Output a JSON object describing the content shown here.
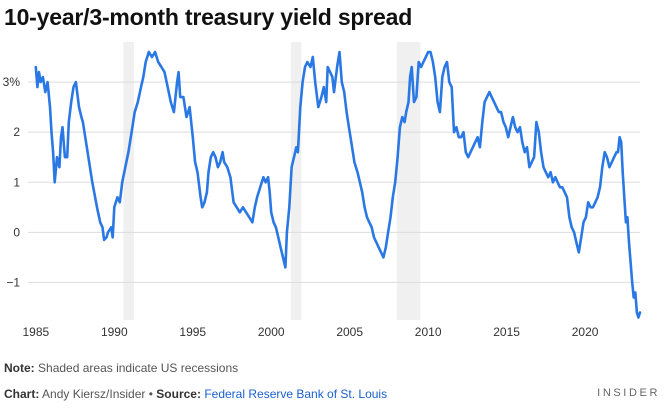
{
  "title": "10-year/3-month treasury yield spread",
  "note": {
    "label": "Note:",
    "text": "Shaded areas indicate US recessions"
  },
  "credit": {
    "chart_label": "Chart:",
    "chart_author": "Andy Kiersz/Insider",
    "separator": "•",
    "source_label": "Source:",
    "source_name": "Federal Reserve Bank of St. Louis"
  },
  "brand": "INSIDER",
  "colors": {
    "line": "#2a78e4",
    "recession": "#f0f0f0",
    "grid": "#dddddd",
    "axis_text": "#333333"
  },
  "chart_data": {
    "type": "line",
    "title": "10-year/3-month treasury yield spread",
    "ylabel": "",
    "xlabel": "",
    "xlim": [
      1984.5,
      2023.5
    ],
    "ylim": [
      -1.75,
      3.8
    ],
    "x_ticks": [
      1985,
      1990,
      1995,
      2000,
      2005,
      2010,
      2015,
      2020
    ],
    "x_tick_labels": [
      "1985",
      "1990",
      "1995",
      "2000",
      "2005",
      "2010",
      "2015",
      "2020"
    ],
    "y_ticks": [
      3,
      2,
      1,
      0,
      -1
    ],
    "y_tick_labels": [
      "3%",
      "2",
      "1",
      "0",
      "−1"
    ],
    "recessions": [
      [
        1990.58,
        1991.25
      ],
      [
        2001.25,
        2001.92
      ],
      [
        2008.0,
        2009.5
      ]
    ],
    "series": [
      {
        "name": "10-year minus 3-month spread",
        "points": [
          [
            1985.0,
            3.3
          ],
          [
            1985.1,
            2.9
          ],
          [
            1985.2,
            3.2
          ],
          [
            1985.3,
            3.0
          ],
          [
            1985.45,
            3.1
          ],
          [
            1985.6,
            2.8
          ],
          [
            1985.75,
            3.0
          ],
          [
            1985.9,
            2.5
          ],
          [
            1986.0,
            2.0
          ],
          [
            1986.1,
            1.6
          ],
          [
            1986.2,
            1.0
          ],
          [
            1986.35,
            1.5
          ],
          [
            1986.5,
            1.3
          ],
          [
            1986.6,
            1.9
          ],
          [
            1986.7,
            2.1
          ],
          [
            1986.85,
            1.5
          ],
          [
            1987.0,
            1.5
          ],
          [
            1987.1,
            2.2
          ],
          [
            1987.25,
            2.6
          ],
          [
            1987.4,
            2.9
          ],
          [
            1987.55,
            3.0
          ],
          [
            1987.75,
            2.5
          ],
          [
            1987.9,
            2.3
          ],
          [
            1988.0,
            2.2
          ],
          [
            1988.3,
            1.6
          ],
          [
            1988.6,
            1.0
          ],
          [
            1988.9,
            0.5
          ],
          [
            1989.1,
            0.2
          ],
          [
            1989.25,
            0.1
          ],
          [
            1989.35,
            -0.15
          ],
          [
            1989.5,
            -0.1
          ],
          [
            1989.6,
            0.0
          ],
          [
            1989.8,
            0.1
          ],
          [
            1989.9,
            -0.1
          ],
          [
            1990.0,
            0.5
          ],
          [
            1990.2,
            0.7
          ],
          [
            1990.35,
            0.6
          ],
          [
            1990.5,
            1.0
          ],
          [
            1990.7,
            1.3
          ],
          [
            1990.9,
            1.6
          ],
          [
            1991.1,
            2.0
          ],
          [
            1991.3,
            2.4
          ],
          [
            1991.5,
            2.6
          ],
          [
            1991.7,
            2.9
          ],
          [
            1991.85,
            3.1
          ],
          [
            1992.0,
            3.4
          ],
          [
            1992.2,
            3.6
          ],
          [
            1992.4,
            3.5
          ],
          [
            1992.6,
            3.6
          ],
          [
            1992.8,
            3.4
          ],
          [
            1993.0,
            3.3
          ],
          [
            1993.2,
            3.2
          ],
          [
            1993.4,
            2.9
          ],
          [
            1993.6,
            2.6
          ],
          [
            1993.8,
            2.4
          ],
          [
            1994.0,
            3.0
          ],
          [
            1994.1,
            3.2
          ],
          [
            1994.2,
            2.7
          ],
          [
            1994.4,
            2.7
          ],
          [
            1994.6,
            2.3
          ],
          [
            1994.8,
            2.5
          ],
          [
            1995.0,
            1.9
          ],
          [
            1995.15,
            1.4
          ],
          [
            1995.3,
            1.2
          ],
          [
            1995.5,
            0.7
          ],
          [
            1995.6,
            0.5
          ],
          [
            1995.75,
            0.6
          ],
          [
            1995.9,
            0.8
          ],
          [
            1996.0,
            1.2
          ],
          [
            1996.15,
            1.5
          ],
          [
            1996.3,
            1.6
          ],
          [
            1996.45,
            1.5
          ],
          [
            1996.6,
            1.3
          ],
          [
            1996.75,
            1.4
          ],
          [
            1996.9,
            1.6
          ],
          [
            1997.0,
            1.4
          ],
          [
            1997.2,
            1.3
          ],
          [
            1997.4,
            1.1
          ],
          [
            1997.6,
            0.6
          ],
          [
            1997.8,
            0.5
          ],
          [
            1998.0,
            0.4
          ],
          [
            1998.2,
            0.5
          ],
          [
            1998.4,
            0.4
          ],
          [
            1998.6,
            0.3
          ],
          [
            1998.8,
            0.2
          ],
          [
            1998.95,
            0.5
          ],
          [
            1999.1,
            0.7
          ],
          [
            1999.3,
            0.9
          ],
          [
            1999.5,
            1.1
          ],
          [
            1999.65,
            1.0
          ],
          [
            1999.8,
            1.1
          ],
          [
            1999.9,
            0.8
          ],
          [
            2000.0,
            0.4
          ],
          [
            2000.15,
            0.2
          ],
          [
            2000.3,
            0.1
          ],
          [
            2000.45,
            -0.1
          ],
          [
            2000.6,
            -0.3
          ],
          [
            2000.75,
            -0.5
          ],
          [
            2000.9,
            -0.7
          ],
          [
            2001.0,
            0.0
          ],
          [
            2001.15,
            0.5
          ],
          [
            2001.3,
            1.3
          ],
          [
            2001.45,
            1.5
          ],
          [
            2001.6,
            1.7
          ],
          [
            2001.7,
            1.6
          ],
          [
            2001.85,
            2.5
          ],
          [
            2002.0,
            3.0
          ],
          [
            2002.15,
            3.3
          ],
          [
            2002.3,
            3.4
          ],
          [
            2002.5,
            3.3
          ],
          [
            2002.65,
            3.5
          ],
          [
            2002.8,
            3.0
          ],
          [
            2003.0,
            2.5
          ],
          [
            2003.2,
            2.7
          ],
          [
            2003.35,
            2.9
          ],
          [
            2003.5,
            2.6
          ],
          [
            2003.6,
            3.3
          ],
          [
            2003.75,
            3.2
          ],
          [
            2003.9,
            3.1
          ],
          [
            2004.0,
            2.8
          ],
          [
            2004.2,
            3.3
          ],
          [
            2004.35,
            3.6
          ],
          [
            2004.5,
            3.0
          ],
          [
            2004.65,
            2.8
          ],
          [
            2004.8,
            2.4
          ],
          [
            2004.95,
            2.1
          ],
          [
            2005.1,
            1.8
          ],
          [
            2005.3,
            1.4
          ],
          [
            2005.5,
            1.2
          ],
          [
            2005.65,
            1.0
          ],
          [
            2005.8,
            0.8
          ],
          [
            2005.95,
            0.5
          ],
          [
            2006.1,
            0.3
          ],
          [
            2006.25,
            0.2
          ],
          [
            2006.4,
            0.1
          ],
          [
            2006.55,
            -0.1
          ],
          [
            2006.7,
            -0.2
          ],
          [
            2006.85,
            -0.3
          ],
          [
            2007.0,
            -0.4
          ],
          [
            2007.15,
            -0.5
          ],
          [
            2007.3,
            -0.3
          ],
          [
            2007.45,
            0.0
          ],
          [
            2007.6,
            0.3
          ],
          [
            2007.75,
            0.7
          ],
          [
            2007.9,
            1.0
          ],
          [
            2008.05,
            1.5
          ],
          [
            2008.2,
            2.1
          ],
          [
            2008.35,
            2.3
          ],
          [
            2008.5,
            2.2
          ],
          [
            2008.6,
            2.4
          ],
          [
            2008.75,
            2.6
          ],
          [
            2008.85,
            3.1
          ],
          [
            2008.95,
            3.3
          ],
          [
            2009.1,
            2.6
          ],
          [
            2009.25,
            2.7
          ],
          [
            2009.4,
            3.4
          ],
          [
            2009.55,
            3.3
          ],
          [
            2009.7,
            3.4
          ],
          [
            2009.85,
            3.5
          ],
          [
            2010.0,
            3.6
          ],
          [
            2010.15,
            3.6
          ],
          [
            2010.3,
            3.4
          ],
          [
            2010.45,
            3.1
          ],
          [
            2010.6,
            2.6
          ],
          [
            2010.75,
            2.4
          ],
          [
            2010.9,
            3.1
          ],
          [
            2011.05,
            3.3
          ],
          [
            2011.2,
            3.4
          ],
          [
            2011.35,
            3.0
          ],
          [
            2011.5,
            2.9
          ],
          [
            2011.65,
            2.0
          ],
          [
            2011.8,
            2.1
          ],
          [
            2011.95,
            1.9
          ],
          [
            2012.1,
            1.9
          ],
          [
            2012.25,
            2.0
          ],
          [
            2012.4,
            1.6
          ],
          [
            2012.55,
            1.5
          ],
          [
            2012.7,
            1.6
          ],
          [
            2012.85,
            1.7
          ],
          [
            2013.0,
            1.8
          ],
          [
            2013.15,
            1.9
          ],
          [
            2013.3,
            1.7
          ],
          [
            2013.45,
            2.2
          ],
          [
            2013.6,
            2.6
          ],
          [
            2013.75,
            2.7
          ],
          [
            2013.9,
            2.8
          ],
          [
            2014.05,
            2.7
          ],
          [
            2014.2,
            2.6
          ],
          [
            2014.35,
            2.5
          ],
          [
            2014.5,
            2.4
          ],
          [
            2014.65,
            2.4
          ],
          [
            2014.8,
            2.2
          ],
          [
            2014.95,
            2.1
          ],
          [
            2015.1,
            1.9
          ],
          [
            2015.25,
            2.1
          ],
          [
            2015.4,
            2.3
          ],
          [
            2015.55,
            2.1
          ],
          [
            2015.7,
            2.0
          ],
          [
            2015.85,
            2.1
          ],
          [
            2016.0,
            1.8
          ],
          [
            2016.15,
            1.6
          ],
          [
            2016.3,
            1.7
          ],
          [
            2016.45,
            1.3
          ],
          [
            2016.6,
            1.4
          ],
          [
            2016.75,
            1.5
          ],
          [
            2016.9,
            2.2
          ],
          [
            2017.05,
            2.0
          ],
          [
            2017.2,
            1.6
          ],
          [
            2017.35,
            1.3
          ],
          [
            2017.5,
            1.2
          ],
          [
            2017.65,
            1.1
          ],
          [
            2017.8,
            1.2
          ],
          [
            2017.95,
            1.0
          ],
          [
            2018.1,
            1.1
          ],
          [
            2018.25,
            1.0
          ],
          [
            2018.4,
            0.9
          ],
          [
            2018.55,
            0.9
          ],
          [
            2018.7,
            0.8
          ],
          [
            2018.85,
            0.7
          ],
          [
            2019.0,
            0.3
          ],
          [
            2019.15,
            0.1
          ],
          [
            2019.3,
            0.0
          ],
          [
            2019.45,
            -0.2
          ],
          [
            2019.6,
            -0.4
          ],
          [
            2019.75,
            -0.1
          ],
          [
            2019.9,
            0.2
          ],
          [
            2020.05,
            0.3
          ],
          [
            2020.2,
            0.6
          ],
          [
            2020.35,
            0.5
          ],
          [
            2020.5,
            0.5
          ],
          [
            2020.65,
            0.6
          ],
          [
            2020.8,
            0.7
          ],
          [
            2020.95,
            0.9
          ],
          [
            2021.1,
            1.3
          ],
          [
            2021.25,
            1.6
          ],
          [
            2021.4,
            1.5
          ],
          [
            2021.55,
            1.3
          ],
          [
            2021.7,
            1.4
          ],
          [
            2021.85,
            1.5
          ],
          [
            2022.0,
            1.6
          ],
          [
            2022.1,
            1.6
          ],
          [
            2022.2,
            1.9
          ],
          [
            2022.3,
            1.8
          ],
          [
            2022.4,
            1.2
          ],
          [
            2022.5,
            0.7
          ],
          [
            2022.6,
            0.2
          ],
          [
            2022.7,
            0.3
          ],
          [
            2022.8,
            -0.2
          ],
          [
            2022.9,
            -0.6
          ],
          [
            2023.0,
            -1.0
          ],
          [
            2023.1,
            -1.3
          ],
          [
            2023.2,
            -1.2
          ],
          [
            2023.3,
            -1.6
          ],
          [
            2023.4,
            -1.7
          ],
          [
            2023.5,
            -1.6
          ]
        ]
      }
    ]
  }
}
